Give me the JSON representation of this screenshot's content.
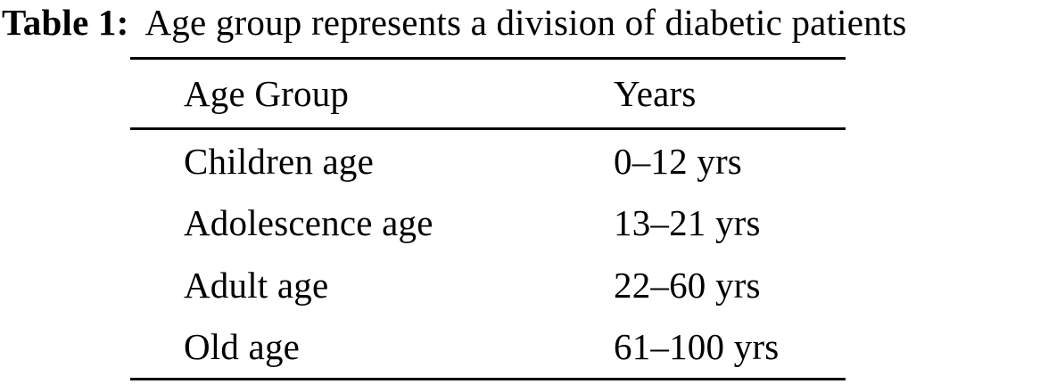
{
  "caption": {
    "label": "Table 1:",
    "text": "Age group represents a division of diabetic patients"
  },
  "table": {
    "columns": [
      "Age Group",
      "Years"
    ],
    "rows": [
      {
        "age_group": "Children age",
        "years": "0–12 yrs"
      },
      {
        "age_group": "Adolescence age",
        "years": "13–21 yrs"
      },
      {
        "age_group": "Adult age",
        "years": "22–60 yrs"
      },
      {
        "age_group": "Old age",
        "years": "61–100 yrs"
      }
    ]
  },
  "colors": {
    "text": "#000000",
    "background": "#ffffff",
    "rule": "#000000"
  }
}
